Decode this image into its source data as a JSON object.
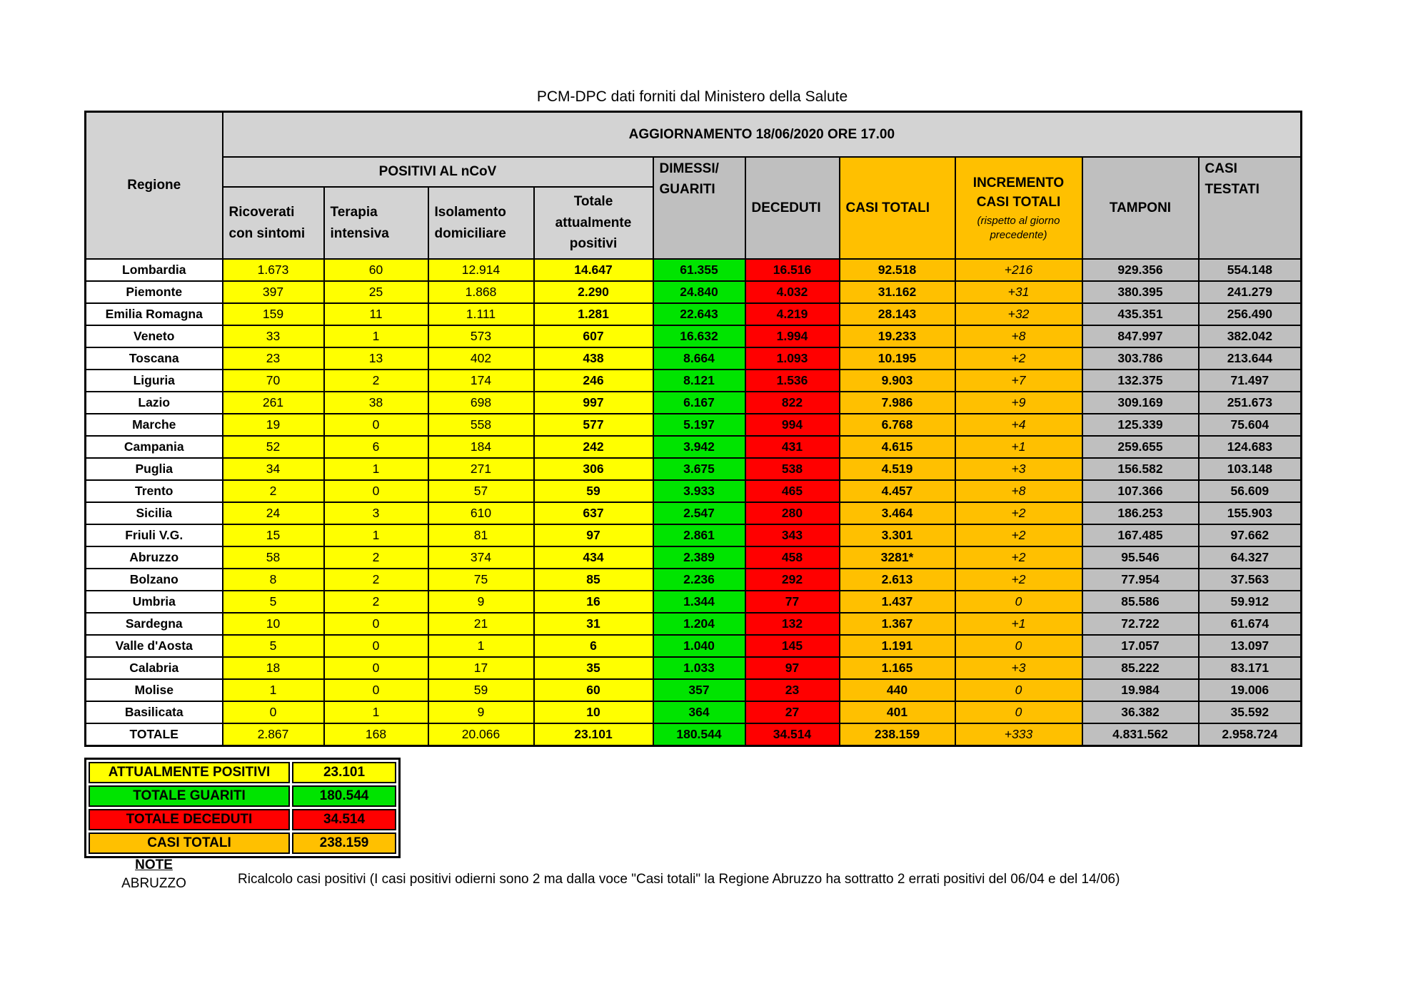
{
  "page": {
    "title": "PCM-DPC dati forniti dal Ministero della Salute"
  },
  "colors": {
    "yellow": "#FFFF00",
    "green": "#00E400",
    "red": "#FF0000",
    "orange": "#FFC000",
    "gray_cell": "#BFBFBF",
    "gray_header": "#D3D3D3"
  },
  "table": {
    "update_title": "AGGIORNAMENTO 18/06/2020 ORE 17.00",
    "headers": {
      "regione": "Regione",
      "positivi_group": "POSITIVI AL nCoV",
      "ricoverati": "Ricoverati con sintomi",
      "terapia": "Terapia intensiva",
      "isolamento": "Isolamento domiciliare",
      "totale_positivi": "Totale attualmente positivi",
      "dimessi": "DIMESSI/\nGUARITI",
      "deceduti": "DECEDUTI",
      "casi_totali": "CASI TOTALI",
      "incremento_title": "INCREMENTO\nCASI  TOTALI",
      "incremento_sub": "(rispetto al giorno precedente)",
      "tamponi": "TAMPONI",
      "casi_testati": "CASI\nTESTATI"
    },
    "rows": [
      {
        "region": "Lombardia",
        "ricoverati": "1.673",
        "terapia": "60",
        "isolamento": "12.914",
        "attualmente_positivi": "14.647",
        "guariti": "61.355",
        "deceduti": "16.516",
        "casi_totali": "92.518",
        "incremento": "+216",
        "tamponi": "929.356",
        "casi_testati": "554.148"
      },
      {
        "region": "Piemonte",
        "ricoverati": "397",
        "terapia": "25",
        "isolamento": "1.868",
        "attualmente_positivi": "2.290",
        "guariti": "24.840",
        "deceduti": "4.032",
        "casi_totali": "31.162",
        "incremento": "+31",
        "tamponi": "380.395",
        "casi_testati": "241.279"
      },
      {
        "region": "Emilia Romagna",
        "ricoverati": "159",
        "terapia": "11",
        "isolamento": "1.111",
        "attualmente_positivi": "1.281",
        "guariti": "22.643",
        "deceduti": "4.219",
        "casi_totali": "28.143",
        "incremento": "+32",
        "tamponi": "435.351",
        "casi_testati": "256.490"
      },
      {
        "region": "Veneto",
        "ricoverati": "33",
        "terapia": "1",
        "isolamento": "573",
        "attualmente_positivi": "607",
        "guariti": "16.632",
        "deceduti": "1.994",
        "casi_totali": "19.233",
        "incremento": "+8",
        "tamponi": "847.997",
        "casi_testati": "382.042"
      },
      {
        "region": "Toscana",
        "ricoverati": "23",
        "terapia": "13",
        "isolamento": "402",
        "attualmente_positivi": "438",
        "guariti": "8.664",
        "deceduti": "1.093",
        "casi_totali": "10.195",
        "incremento": "+2",
        "tamponi": "303.786",
        "casi_testati": "213.644"
      },
      {
        "region": "Liguria",
        "ricoverati": "70",
        "terapia": "2",
        "isolamento": "174",
        "attualmente_positivi": "246",
        "guariti": "8.121",
        "deceduti": "1.536",
        "casi_totali": "9.903",
        "incremento": "+7",
        "tamponi": "132.375",
        "casi_testati": "71.497"
      },
      {
        "region": "Lazio",
        "ricoverati": "261",
        "terapia": "38",
        "isolamento": "698",
        "attualmente_positivi": "997",
        "guariti": "6.167",
        "deceduti": "822",
        "casi_totali": "7.986",
        "incremento": "+9",
        "tamponi": "309.169",
        "casi_testati": "251.673"
      },
      {
        "region": "Marche",
        "ricoverati": "19",
        "terapia": "0",
        "isolamento": "558",
        "attualmente_positivi": "577",
        "guariti": "5.197",
        "deceduti": "994",
        "casi_totali": "6.768",
        "incremento": "+4",
        "tamponi": "125.339",
        "casi_testati": "75.604"
      },
      {
        "region": "Campania",
        "ricoverati": "52",
        "terapia": "6",
        "isolamento": "184",
        "attualmente_positivi": "242",
        "guariti": "3.942",
        "deceduti": "431",
        "casi_totali": "4.615",
        "incremento": "+1",
        "tamponi": "259.655",
        "casi_testati": "124.683"
      },
      {
        "region": "Puglia",
        "ricoverati": "34",
        "terapia": "1",
        "isolamento": "271",
        "attualmente_positivi": "306",
        "guariti": "3.675",
        "deceduti": "538",
        "casi_totali": "4.519",
        "incremento": "+3",
        "tamponi": "156.582",
        "casi_testati": "103.148"
      },
      {
        "region": "Trento",
        "ricoverati": "2",
        "terapia": "0",
        "isolamento": "57",
        "attualmente_positivi": "59",
        "guariti": "3.933",
        "deceduti": "465",
        "casi_totali": "4.457",
        "incremento": "+8",
        "tamponi": "107.366",
        "casi_testati": "56.609"
      },
      {
        "region": "Sicilia",
        "ricoverati": "24",
        "terapia": "3",
        "isolamento": "610",
        "attualmente_positivi": "637",
        "guariti": "2.547",
        "deceduti": "280",
        "casi_totali": "3.464",
        "incremento": "+2",
        "tamponi": "186.253",
        "casi_testati": "155.903"
      },
      {
        "region": "Friuli V.G.",
        "ricoverati": "15",
        "terapia": "1",
        "isolamento": "81",
        "attualmente_positivi": "97",
        "guariti": "2.861",
        "deceduti": "343",
        "casi_totali": "3.301",
        "incremento": "+2",
        "tamponi": "167.485",
        "casi_testati": "97.662"
      },
      {
        "region": "Abruzzo",
        "ricoverati": "58",
        "terapia": "2",
        "isolamento": "374",
        "attualmente_positivi": "434",
        "guariti": "2.389",
        "deceduti": "458",
        "casi_totali": "3281*",
        "incremento": "+2",
        "tamponi": "95.546",
        "casi_testati": "64.327"
      },
      {
        "region": "Bolzano",
        "ricoverati": "8",
        "terapia": "2",
        "isolamento": "75",
        "attualmente_positivi": "85",
        "guariti": "2.236",
        "deceduti": "292",
        "casi_totali": "2.613",
        "incremento": "+2",
        "tamponi": "77.954",
        "casi_testati": "37.563"
      },
      {
        "region": "Umbria",
        "ricoverati": "5",
        "terapia": "2",
        "isolamento": "9",
        "attualmente_positivi": "16",
        "guariti": "1.344",
        "deceduti": "77",
        "casi_totali": "1.437",
        "incremento": "0",
        "tamponi": "85.586",
        "casi_testati": "59.912"
      },
      {
        "region": "Sardegna",
        "ricoverati": "10",
        "terapia": "0",
        "isolamento": "21",
        "attualmente_positivi": "31",
        "guariti": "1.204",
        "deceduti": "132",
        "casi_totali": "1.367",
        "incremento": "+1",
        "tamponi": "72.722",
        "casi_testati": "61.674"
      },
      {
        "region": "Valle d'Aosta",
        "ricoverati": "5",
        "terapia": "0",
        "isolamento": "1",
        "attualmente_positivi": "6",
        "guariti": "1.040",
        "deceduti": "145",
        "casi_totali": "1.191",
        "incremento": "0",
        "tamponi": "17.057",
        "casi_testati": "13.097"
      },
      {
        "region": "Calabria",
        "ricoverati": "18",
        "terapia": "0",
        "isolamento": "17",
        "attualmente_positivi": "35",
        "guariti": "1.033",
        "deceduti": "97",
        "casi_totali": "1.165",
        "incremento": "+3",
        "tamponi": "85.222",
        "casi_testati": "83.171"
      },
      {
        "region": "Molise",
        "ricoverati": "1",
        "terapia": "0",
        "isolamento": "59",
        "attualmente_positivi": "60",
        "guariti": "357",
        "deceduti": "23",
        "casi_totali": "440",
        "incremento": "0",
        "tamponi": "19.984",
        "casi_testati": "19.006"
      },
      {
        "region": "Basilicata",
        "ricoverati": "0",
        "terapia": "1",
        "isolamento": "9",
        "attualmente_positivi": "10",
        "guariti": "364",
        "deceduti": "27",
        "casi_totali": "401",
        "incremento": "0",
        "tamponi": "36.382",
        "casi_testati": "35.592"
      }
    ],
    "totale": {
      "region": "TOTALE",
      "ricoverati": "2.867",
      "terapia": "168",
      "isolamento": "20.066",
      "attualmente_positivi": "23.101",
      "guariti": "180.544",
      "deceduti": "34.514",
      "casi_totali": "238.159",
      "incremento": "+333",
      "tamponi": "4.831.562",
      "casi_testati": "2.958.724"
    }
  },
  "summary": {
    "rows": [
      {
        "label": "ATTUALMENTE POSITIVI",
        "value": "23.101",
        "color": "bg-yellow"
      },
      {
        "label": "TOTALE GUARITI",
        "value": "180.544",
        "color": "bg-green"
      },
      {
        "label": "TOTALE DECEDUTI",
        "value": "34.514",
        "color": "bg-red"
      },
      {
        "label": "CASI TOTALI",
        "value": "238.159",
        "color": "bg-orange"
      }
    ]
  },
  "note": {
    "heading": "NOTE",
    "region": "ABRUZZO",
    "text": "Ricalcolo casi positivi (I casi positivi odierni sono 2 ma dalla voce \"Casi totali\" la Regione Abruzzo ha sottratto  2 errati positivi del 06/04 e del 14/06)"
  }
}
